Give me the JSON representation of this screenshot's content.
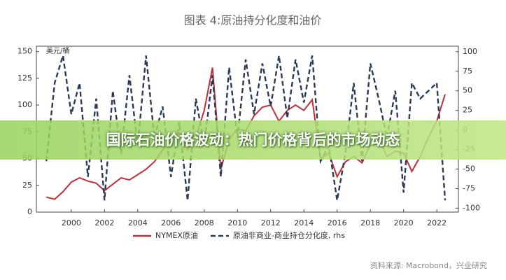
{
  "banner": "国际石油价格波动：热门价格背后的市场动态",
  "chart_data": {
    "type": "line",
    "title": "图表 4:原油持分化度和油价",
    "ylabel": "美元/桶",
    "source": "资料来源: Macrobond，兴业研究",
    "x": [
      1998.5,
      1999,
      1999.5,
      2000,
      2000.5,
      2001,
      2001.5,
      2002,
      2002.5,
      2003,
      2003.5,
      2004,
      2004.5,
      2005,
      2005.5,
      2006,
      2006.5,
      2007,
      2007.5,
      2008,
      2008.5,
      2009,
      2009.5,
      2010,
      2010.5,
      2011,
      2011.5,
      2012,
      2012.5,
      2013,
      2013.5,
      2014,
      2014.5,
      2015,
      2015.5,
      2016,
      2016.5,
      2017,
      2017.5,
      2018,
      2018.5,
      2019,
      2019.5,
      2020,
      2020.5,
      2021,
      2021.5,
      2022,
      2022.5
    ],
    "series": [
      {
        "name": "NYMEX原油",
        "color": "#c0303a",
        "dash": false,
        "values": [
          14,
          12,
          19,
          28,
          32,
          29,
          27,
          20,
          26,
          32,
          30,
          35,
          40,
          47,
          58,
          66,
          74,
          58,
          70,
          95,
          135,
          40,
          68,
          78,
          76,
          90,
          98,
          100,
          85,
          95,
          100,
          95,
          105,
          50,
          55,
          33,
          47,
          52,
          46,
          63,
          70,
          52,
          57,
          55,
          38,
          52,
          70,
          85,
          110
        ]
      },
      {
        "name": "原油非商业-商业持仓分化度, rhs",
        "color": "#2b3a55",
        "dash": true,
        "axis": "y2",
        "values": [
          -40,
          60,
          95,
          20,
          60,
          -60,
          40,
          -90,
          50,
          -30,
          70,
          -20,
          95,
          -10,
          30,
          -60,
          10,
          -90,
          40,
          -20,
          70,
          -60,
          80,
          -10,
          90,
          20,
          85,
          30,
          95,
          15,
          90,
          35,
          95,
          -40,
          -20,
          -90,
          -30,
          60,
          -40,
          85,
          40,
          -10,
          50,
          -80,
          60,
          40,
          50,
          60,
          -90
        ]
      }
    ],
    "xlim": [
      1997.9,
      2023.3
    ],
    "xticks": [
      2000,
      2002,
      2004,
      2006,
      2008,
      2010,
      2012,
      2014,
      2016,
      2018,
      2020,
      2022
    ],
    "ylim": [
      0,
      155
    ],
    "yticks": [
      0,
      25,
      50,
      75,
      100,
      125,
      150
    ],
    "y2lim": [
      -105,
      107
    ],
    "y2ticks": [
      -100,
      -75,
      -50,
      -25,
      0,
      25,
      50,
      75,
      100
    ]
  }
}
